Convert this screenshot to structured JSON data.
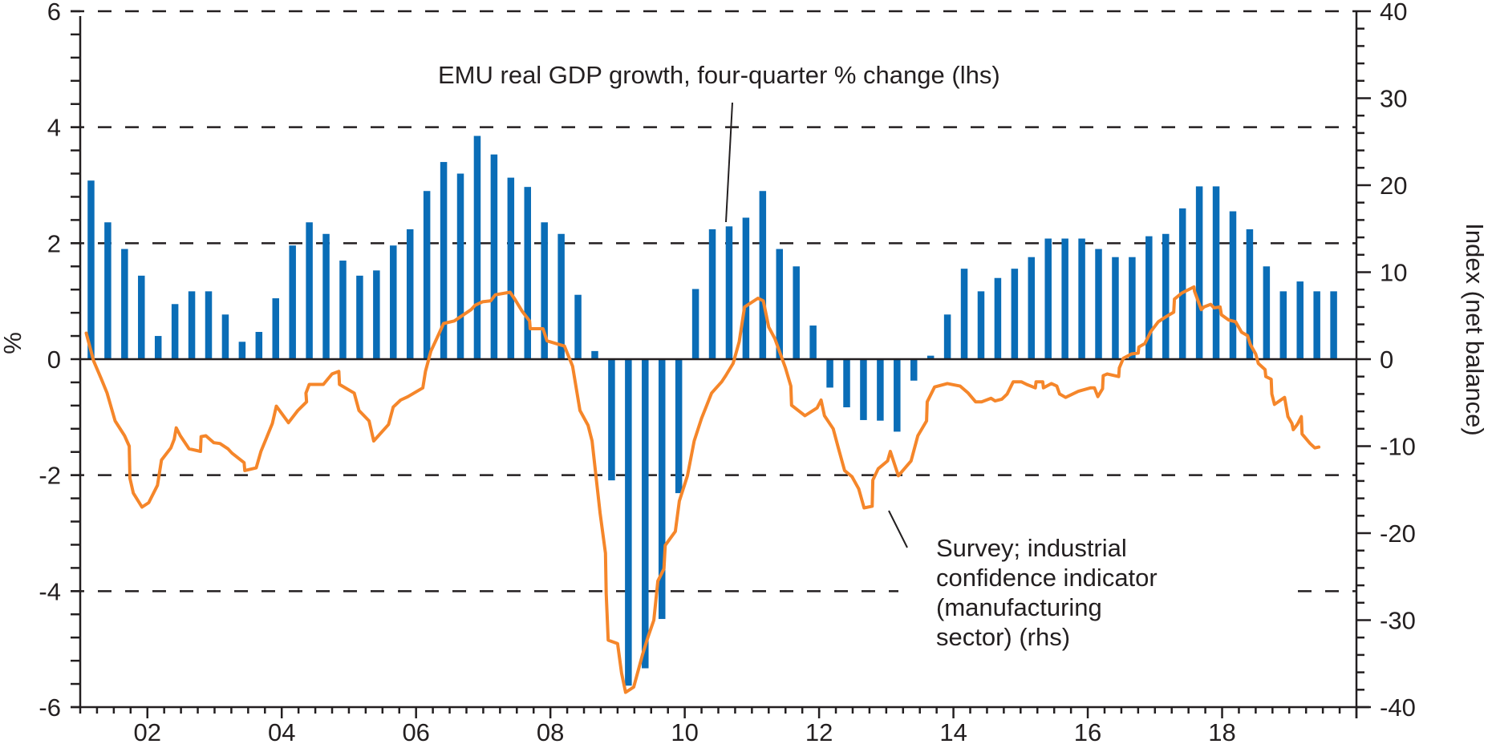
{
  "chart_data": {
    "type": "bar+line",
    "title": "",
    "x": {
      "range": [
        2001,
        2020
      ],
      "tick_labels": [
        "02",
        "04",
        "06",
        "08",
        "10",
        "12",
        "14",
        "16",
        "18"
      ],
      "tick_years": [
        2002,
        2004,
        2006,
        2008,
        2010,
        2012,
        2014,
        2016,
        2018
      ],
      "minor_ticks": "quarterly"
    },
    "y_left": {
      "label": "%",
      "range": [
        -6,
        6
      ],
      "ticks": [
        6,
        4,
        2,
        0,
        -2,
        -4,
        -6
      ],
      "tick_labels": [
        "6",
        "4",
        "2",
        "0",
        "-2",
        "-4",
        "-6"
      ],
      "minor_step": 0.4
    },
    "y_right": {
      "label": "Index (net balance)",
      "range": [
        -40,
        40
      ],
      "ticks": [
        40,
        30,
        20,
        10,
        0,
        -10,
        -20,
        -30,
        -40
      ],
      "tick_labels": [
        "40",
        "30",
        "20",
        "10",
        "0",
        "-10",
        "-20",
        "-30",
        "-40"
      ],
      "minor_step": 2
    },
    "grid": {
      "on": true,
      "style": "dashed",
      "at_left_values": [
        6,
        4,
        2,
        -2,
        -4
      ]
    },
    "series": [
      {
        "name": "EMU real GDP growth, four-quarter % change (lhs)",
        "type": "bar",
        "axis": "left",
        "color": "#0a6db7",
        "start_quarter": "2001Q1",
        "frequency": "quarterly",
        "values": [
          3.08,
          2.36,
          1.9,
          1.44,
          0.4,
          0.95,
          1.17,
          1.17,
          0.77,
          0.3,
          0.47,
          1.05,
          1.96,
          2.36,
          2.16,
          1.7,
          1.44,
          1.53,
          1.96,
          2.24,
          2.9,
          3.4,
          3.2,
          3.85,
          3.53,
          3.13,
          2.97,
          2.36,
          2.16,
          1.11,
          0.14,
          -2.09,
          -5.63,
          -5.33,
          -4.48,
          -2.31,
          1.21,
          2.24,
          2.29,
          2.44,
          2.9,
          1.9,
          1.6,
          0.58,
          -0.49,
          -0.83,
          -1.05,
          -1.06,
          -1.25,
          -0.37,
          0.06,
          0.77,
          1.56,
          1.17,
          1.4,
          1.56,
          1.76,
          2.08,
          2.08,
          2.08,
          1.9,
          1.76,
          1.76,
          2.12,
          2.16,
          2.6,
          2.98,
          2.98,
          2.55,
          2.24,
          1.6,
          1.17,
          1.34,
          1.17,
          1.17
        ]
      },
      {
        "name": "Survey; industrial confidence indicator (manufacturing sector) (rhs)",
        "type": "line",
        "axis": "right",
        "color": "#f5862a",
        "points": [
          [
            2001.09,
            3.0
          ],
          [
            2001.2,
            -0.2
          ],
          [
            2001.31,
            -2.2
          ],
          [
            2001.4,
            -3.9
          ],
          [
            2001.52,
            -7.1
          ],
          [
            2001.66,
            -8.8
          ],
          [
            2001.73,
            -10.0
          ],
          [
            2001.74,
            -13.7
          ],
          [
            2001.79,
            -15.4
          ],
          [
            2001.92,
            -17.0
          ],
          [
            2002.02,
            -16.5
          ],
          [
            2002.15,
            -14.5
          ],
          [
            2002.21,
            -11.6
          ],
          [
            2002.35,
            -10.2
          ],
          [
            2002.4,
            -9.2
          ],
          [
            2002.43,
            -7.9
          ],
          [
            2002.49,
            -8.8
          ],
          [
            2002.62,
            -10.3
          ],
          [
            2002.79,
            -10.6
          ],
          [
            2002.8,
            -8.9
          ],
          [
            2002.87,
            -8.8
          ],
          [
            2002.99,
            -9.6
          ],
          [
            2003.08,
            -9.7
          ],
          [
            2003.2,
            -10.3
          ],
          [
            2003.26,
            -10.8
          ],
          [
            2003.44,
            -11.9
          ],
          [
            2003.45,
            -12.8
          ],
          [
            2003.62,
            -12.5
          ],
          [
            2003.69,
            -10.6
          ],
          [
            2003.77,
            -9.1
          ],
          [
            2003.86,
            -7.4
          ],
          [
            2003.92,
            -5.4
          ],
          [
            2004.1,
            -7.3
          ],
          [
            2004.24,
            -5.9
          ],
          [
            2004.37,
            -4.9
          ],
          [
            2004.36,
            -3.9
          ],
          [
            2004.41,
            -2.9
          ],
          [
            2004.62,
            -2.9
          ],
          [
            2004.75,
            -1.7
          ],
          [
            2004.85,
            -1.4
          ],
          [
            2004.86,
            -2.9
          ],
          [
            2005.08,
            -3.9
          ],
          [
            2005.15,
            -5.9
          ],
          [
            2005.3,
            -7.1
          ],
          [
            2005.37,
            -9.4
          ],
          [
            2005.59,
            -7.5
          ],
          [
            2005.66,
            -5.5
          ],
          [
            2005.77,
            -4.7
          ],
          [
            2005.88,
            -4.3
          ],
          [
            2006.1,
            -3.3
          ],
          [
            2006.14,
            -1.4
          ],
          [
            2006.22,
            0.9
          ],
          [
            2006.31,
            2.4
          ],
          [
            2006.41,
            4.1
          ],
          [
            2006.57,
            4.4
          ],
          [
            2006.82,
            5.7
          ],
          [
            2006.88,
            6.2
          ],
          [
            2006.99,
            6.6
          ],
          [
            2007.11,
            6.7
          ],
          [
            2007.18,
            7.4
          ],
          [
            2007.4,
            7.7
          ],
          [
            2007.47,
            6.9
          ],
          [
            2007.58,
            5.5
          ],
          [
            2007.69,
            4.4
          ],
          [
            2007.7,
            3.5
          ],
          [
            2007.89,
            3.5
          ],
          [
            2007.95,
            2.1
          ],
          [
            2008.21,
            1.5
          ],
          [
            2008.33,
            -0.8
          ],
          [
            2008.44,
            -5.9
          ],
          [
            2008.56,
            -7.6
          ],
          [
            2008.62,
            -9.4
          ],
          [
            2008.74,
            -17.7
          ],
          [
            2008.82,
            -22.3
          ],
          [
            2008.83,
            -26.9
          ],
          [
            2008.86,
            -32.3
          ],
          [
            2009.0,
            -32.7
          ],
          [
            2009.06,
            -36.1
          ],
          [
            2009.12,
            -38.3
          ],
          [
            2009.24,
            -37.7
          ],
          [
            2009.37,
            -34.0
          ],
          [
            2009.45,
            -32.0
          ],
          [
            2009.54,
            -30.0
          ],
          [
            2009.6,
            -25.5
          ],
          [
            2009.69,
            -24.1
          ],
          [
            2009.71,
            -21.4
          ],
          [
            2009.86,
            -19.8
          ],
          [
            2009.92,
            -16.3
          ],
          [
            2010.04,
            -13.4
          ],
          [
            2010.14,
            -9.4
          ],
          [
            2010.25,
            -6.8
          ],
          [
            2010.4,
            -3.9
          ],
          [
            2010.55,
            -2.6
          ],
          [
            2010.61,
            -1.9
          ],
          [
            2010.72,
            -0.5
          ],
          [
            2010.81,
            2.0
          ],
          [
            2010.89,
            6.0
          ],
          [
            2011.09,
            7.0
          ],
          [
            2011.17,
            6.7
          ],
          [
            2011.25,
            3.7
          ],
          [
            2011.34,
            2.4
          ],
          [
            2011.5,
            -1.0
          ],
          [
            2011.58,
            -3.1
          ],
          [
            2011.59,
            -5.3
          ],
          [
            2011.79,
            -6.5
          ],
          [
            2011.97,
            -5.6
          ],
          [
            2012.03,
            -4.7
          ],
          [
            2012.08,
            -6.5
          ],
          [
            2012.21,
            -8.0
          ],
          [
            2012.29,
            -10.3
          ],
          [
            2012.38,
            -12.8
          ],
          [
            2012.49,
            -13.5
          ],
          [
            2012.59,
            -14.9
          ],
          [
            2012.67,
            -17.1
          ],
          [
            2012.79,
            -16.9
          ],
          [
            2012.8,
            -13.9
          ],
          [
            2012.88,
            -12.6
          ],
          [
            2013.02,
            -11.7
          ],
          [
            2013.06,
            -10.6
          ],
          [
            2013.18,
            -13.4
          ],
          [
            2013.37,
            -11.7
          ],
          [
            2013.47,
            -8.8
          ],
          [
            2013.6,
            -7.1
          ],
          [
            2013.61,
            -4.9
          ],
          [
            2013.72,
            -3.2
          ],
          [
            2013.91,
            -2.8
          ],
          [
            2014.1,
            -3.1
          ],
          [
            2014.22,
            -3.9
          ],
          [
            2014.33,
            -4.9
          ],
          [
            2014.42,
            -4.9
          ],
          [
            2014.56,
            -4.5
          ],
          [
            2014.62,
            -4.8
          ],
          [
            2014.72,
            -4.6
          ],
          [
            2014.8,
            -4.0
          ],
          [
            2014.89,
            -2.6
          ],
          [
            2015.01,
            -2.6
          ],
          [
            2015.09,
            -2.9
          ],
          [
            2015.22,
            -3.3
          ],
          [
            2015.23,
            -2.6
          ],
          [
            2015.33,
            -2.6
          ],
          [
            2015.34,
            -3.3
          ],
          [
            2015.46,
            -2.8
          ],
          [
            2015.54,
            -3.1
          ],
          [
            2015.58,
            -4.0
          ],
          [
            2015.67,
            -4.4
          ],
          [
            2015.86,
            -3.7
          ],
          [
            2016.04,
            -3.3
          ],
          [
            2016.1,
            -3.3
          ],
          [
            2016.15,
            -4.3
          ],
          [
            2016.22,
            -3.4
          ],
          [
            2016.23,
            -1.9
          ],
          [
            2016.29,
            -1.7
          ],
          [
            2016.46,
            -2.0
          ],
          [
            2016.47,
            -1.0
          ],
          [
            2016.53,
            0.1
          ],
          [
            2016.65,
            0.6
          ],
          [
            2016.75,
            0.7
          ],
          [
            2016.76,
            1.4
          ],
          [
            2016.85,
            1.8
          ],
          [
            2016.94,
            3.2
          ],
          [
            2017.05,
            4.3
          ],
          [
            2017.17,
            4.9
          ],
          [
            2017.28,
            5.4
          ],
          [
            2017.29,
            6.9
          ],
          [
            2017.4,
            7.6
          ],
          [
            2017.58,
            8.3
          ],
          [
            2017.59,
            7.8
          ],
          [
            2017.69,
            5.7
          ],
          [
            2017.73,
            6.0
          ],
          [
            2017.83,
            6.3
          ],
          [
            2017.88,
            5.9
          ],
          [
            2017.97,
            6.0
          ],
          [
            2017.99,
            5.1
          ],
          [
            2018.1,
            4.5
          ],
          [
            2018.2,
            4.3
          ],
          [
            2018.29,
            3.1
          ],
          [
            2018.38,
            2.7
          ],
          [
            2018.42,
            1.7
          ],
          [
            2018.5,
            0.6
          ],
          [
            2018.54,
            -0.5
          ],
          [
            2018.64,
            -1.2
          ],
          [
            2018.65,
            -2.0
          ],
          [
            2018.73,
            -2.3
          ],
          [
            2018.74,
            -4.0
          ],
          [
            2018.78,
            -5.2
          ],
          [
            2018.93,
            -4.4
          ],
          [
            2018.98,
            -6.6
          ],
          [
            2019.04,
            -7.4
          ],
          [
            2019.06,
            -8.1
          ],
          [
            2019.12,
            -7.5
          ],
          [
            2019.18,
            -6.6
          ],
          [
            2019.19,
            -8.6
          ],
          [
            2019.31,
            -9.7
          ],
          [
            2019.38,
            -10.2
          ],
          [
            2019.44,
            -10.1
          ]
        ]
      }
    ],
    "annotations": [
      {
        "text": "EMU real GDP growth, four-quarter % change (lhs)",
        "points_to": "bar 2010Q3"
      },
      {
        "lines": [
          "Survey; industrial",
          "confidence indicator",
          "(manufacturing",
          "sector) (rhs)"
        ],
        "points_to": "line 2012 trough"
      }
    ],
    "legend": "none (inline annotations)"
  }
}
